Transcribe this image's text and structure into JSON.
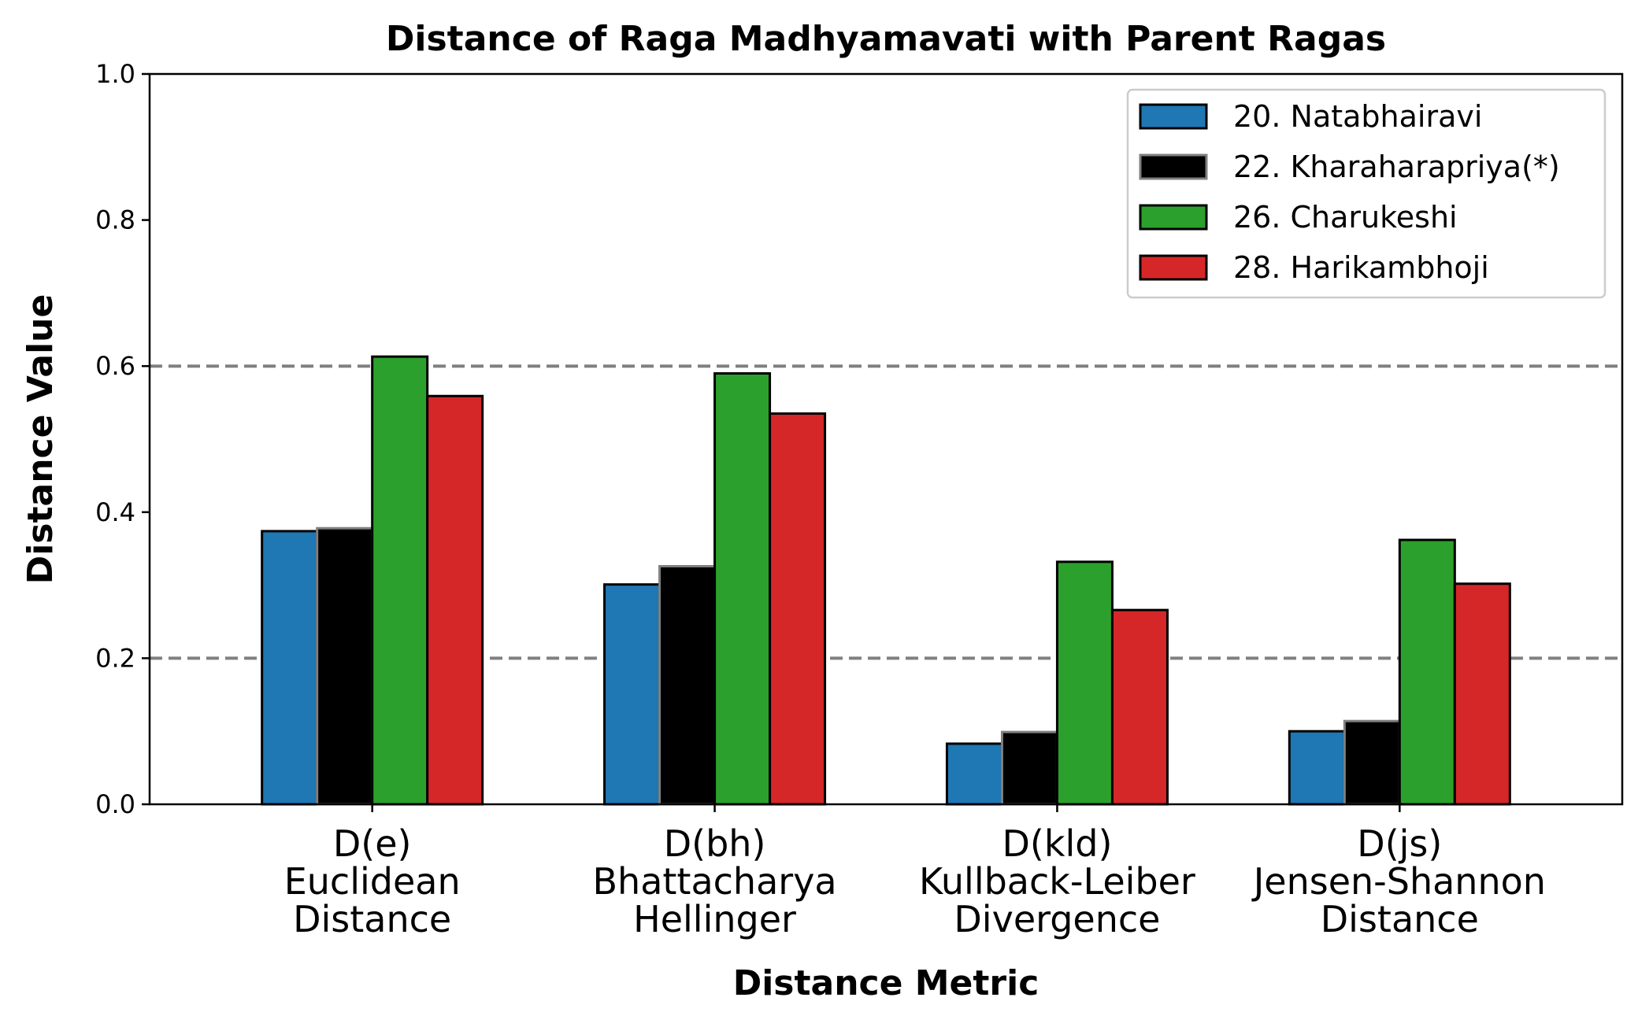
{
  "chart_data": {
    "type": "bar",
    "title": "Distance of Raga Madhyamavati with Parent Ragas",
    "xlabel": "Distance Metric",
    "ylabel": "Distance Value",
    "ylim": [
      0,
      1.0
    ],
    "yticks": [
      "0.0",
      "0.2",
      "0.4",
      "0.6",
      "0.8",
      "1.0"
    ],
    "reference_lines": [
      0.2,
      0.6
    ],
    "reference_line_color": "#808080",
    "legend_position": "top-right",
    "grid": false,
    "categories": [
      [
        "D(e)",
        "Euclidean",
        "Distance"
      ],
      [
        "D(bh)",
        "Bhattacharya",
        "Hellinger"
      ],
      [
        "D(kld)",
        "Kullback-Leiber",
        "Divergence"
      ],
      [
        "D(js)",
        "Jensen-Shannon",
        "Distance"
      ]
    ],
    "series": [
      {
        "name": "20. Natabhairavi",
        "color": "#1f77b4",
        "edge": "#000000",
        "values": [
          0.374,
          0.301,
          0.083,
          0.1
        ]
      },
      {
        "name": "22. Kharaharapriya(*)",
        "color": "#000000",
        "edge": "#808080",
        "values": [
          0.378,
          0.326,
          0.099,
          0.114
        ]
      },
      {
        "name": "26. Charukeshi",
        "color": "#2ca02c",
        "edge": "#000000",
        "values": [
          0.613,
          0.59,
          0.332,
          0.362
        ]
      },
      {
        "name": "28. Harikambhoji",
        "color": "#d62728",
        "edge": "#000000",
        "values": [
          0.559,
          0.535,
          0.266,
          0.302
        ]
      }
    ]
  }
}
